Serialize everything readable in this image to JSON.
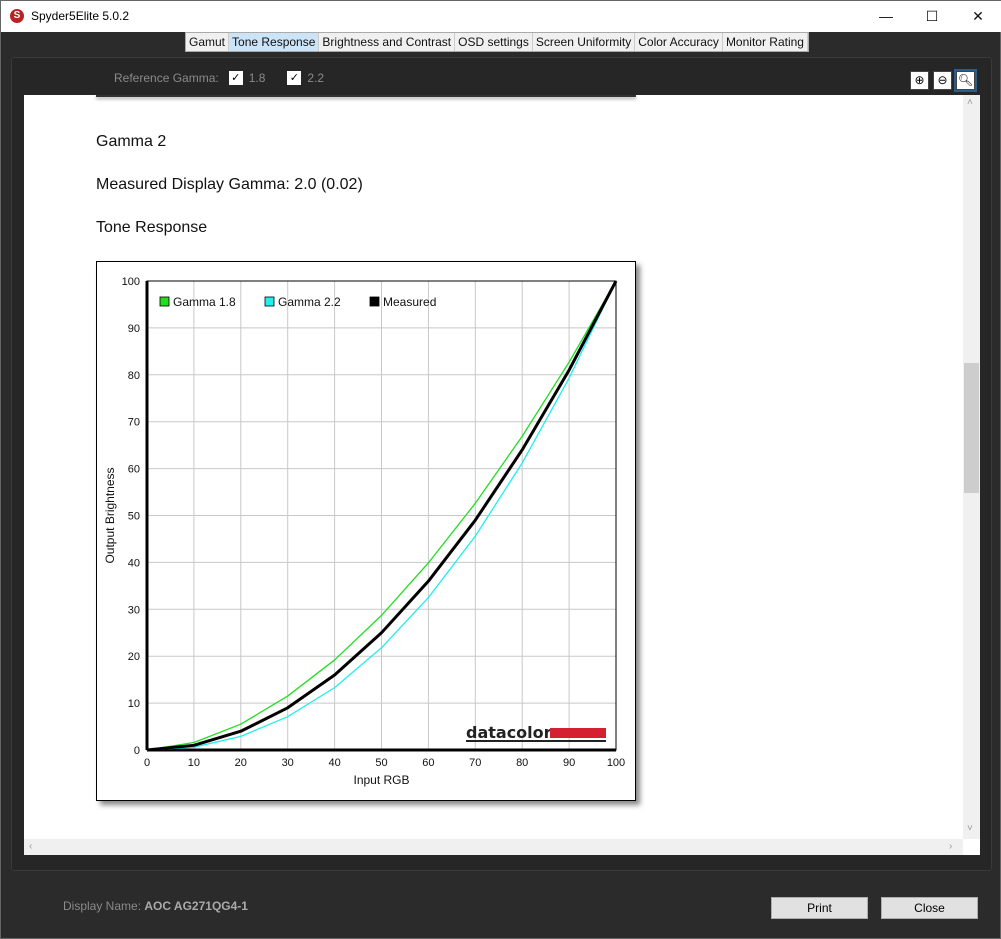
{
  "window": {
    "title": "Spyder5Elite 5.0.2",
    "minimize": "—",
    "maximize": "☐",
    "close": "✕"
  },
  "tabs": [
    {
      "label": "Gamut"
    },
    {
      "label": "Tone Response",
      "active": true
    },
    {
      "label": "Brightness and Contrast"
    },
    {
      "label": "OSD settings"
    },
    {
      "label": "Screen Uniformity"
    },
    {
      "label": "Color Accuracy"
    },
    {
      "label": "Monitor Rating"
    }
  ],
  "toolbar": {
    "ref_label": "Reference Gamma:",
    "options": [
      {
        "label": "1.8",
        "checked": true
      },
      {
        "label": "2.2",
        "checked": true
      }
    ],
    "zoom_in": "zoom-in-icon",
    "zoom_out": "zoom-out-icon",
    "zoom_fit": "zoom-fit-icon"
  },
  "report": {
    "heading": "Gamma 2",
    "measured": "Measured Display Gamma: 2.0 (0.02)",
    "section": "Tone Response"
  },
  "chart_data": {
    "type": "line",
    "xlabel": "Input RGB",
    "ylabel": "Output Brightness",
    "xlim": [
      0,
      100
    ],
    "ylim": [
      0,
      100
    ],
    "xticks": [
      0,
      10,
      20,
      30,
      40,
      50,
      60,
      70,
      80,
      90,
      100
    ],
    "yticks": [
      0,
      10,
      20,
      30,
      40,
      50,
      60,
      70,
      80,
      90,
      100
    ],
    "grid": true,
    "legend": "top-left",
    "x": [
      0,
      10,
      20,
      30,
      40,
      50,
      60,
      70,
      80,
      90,
      100
    ],
    "series": [
      {
        "name": "Gamma 1.8",
        "color": "#22dd22",
        "values": [
          0,
          1.6,
          5.5,
          11.5,
          19.2,
          28.7,
          39.9,
          52.6,
          66.9,
          82.7,
          100
        ]
      },
      {
        "name": "Gamma 2.2",
        "color": "#22eeee",
        "values": [
          0,
          0.6,
          2.9,
          7.1,
          13.3,
          21.8,
          32.5,
          45.6,
          61.2,
          79.3,
          100
        ]
      },
      {
        "name": "Measured",
        "color": "#000000",
        "values": [
          0,
          1,
          4,
          9,
          16,
          25,
          36,
          49,
          64,
          81,
          100
        ]
      }
    ],
    "logo": "datacolor",
    "logo_color": "#d42030"
  },
  "footer": {
    "display_label": "Display Name:",
    "display_value": "AOC AG271QG4-1",
    "print": "Print",
    "close": "Close"
  }
}
